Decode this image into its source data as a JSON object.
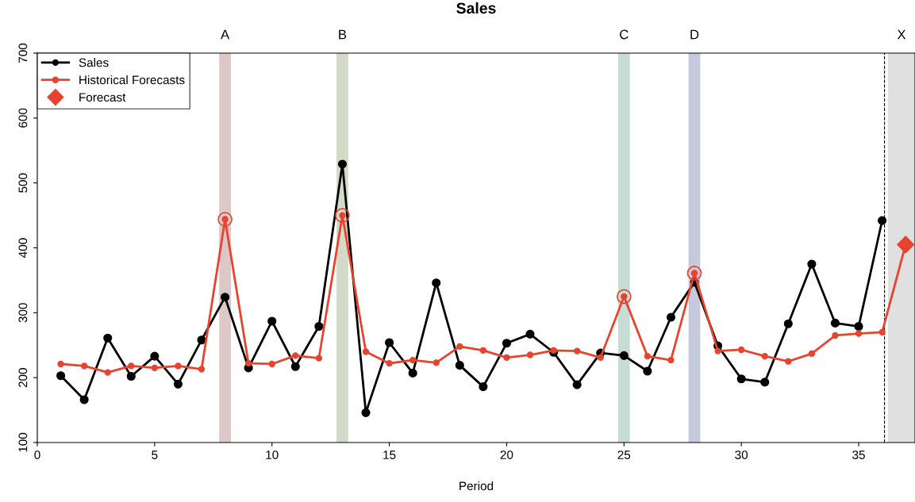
{
  "chart_data": {
    "type": "line",
    "title": "Sales",
    "xlabel": "Period",
    "xlim": [
      0,
      37.4
    ],
    "xticks": [
      0,
      5,
      10,
      15,
      20,
      25,
      30,
      35
    ],
    "ylim": [
      100,
      700
    ],
    "yticks": [
      100,
      200,
      300,
      400,
      500,
      600,
      700
    ],
    "grid": false,
    "legend": "top left",
    "marker": "circle",
    "line_style": "solid",
    "series": [
      {
        "name": "Sales",
        "color": "#000000",
        "x": [
          1,
          2,
          3,
          4,
          5,
          6,
          7,
          8,
          9,
          10,
          11,
          12,
          13,
          14,
          15,
          16,
          17,
          18,
          19,
          20,
          21,
          22,
          23,
          24,
          25,
          26,
          27,
          28,
          29,
          30,
          31,
          32,
          33,
          34,
          35,
          36
        ],
        "values": [
          203,
          166,
          261,
          202,
          233,
          190,
          258,
          324,
          215,
          287,
          217,
          279,
          529,
          146,
          254,
          207,
          346,
          219,
          186,
          253,
          267,
          239,
          189,
          238,
          234,
          210,
          293,
          347,
          249,
          198,
          193,
          283,
          375,
          284,
          279,
          442
        ]
      },
      {
        "name": "Historical Forecasts",
        "color": "#e8432e",
        "x": [
          1,
          2,
          3,
          4,
          5,
          6,
          7,
          8,
          9,
          10,
          11,
          12,
          13,
          14,
          15,
          16,
          17,
          18,
          19,
          20,
          21,
          22,
          23,
          24,
          25,
          26,
          27,
          28,
          29,
          30,
          31,
          32,
          33,
          34,
          35,
          36,
          37
        ],
        "values": [
          221,
          218,
          208,
          218,
          215,
          218,
          213,
          444,
          222,
          221,
          234,
          230,
          450,
          240,
          222,
          227,
          223,
          248,
          242,
          231,
          235,
          242,
          241,
          231,
          325,
          233,
          227,
          361,
          241,
          243,
          233,
          225,
          237,
          265,
          268,
          270,
          405
        ]
      },
      {
        "name": "Forecast",
        "type": "scatter",
        "marker": "diamond",
        "color": "#e8432e",
        "x": [
          37
        ],
        "values": [
          405
        ]
      },
      {
        "type": "scatter",
        "marker": "circle",
        "color": "#e8432e",
        "x": [
          8,
          13,
          25,
          28
        ],
        "values": [
          444,
          450,
          325,
          361
        ]
      }
    ],
    "bands": [
      {
        "axis": "x",
        "from": 7.75,
        "to": 8.25,
        "label": "A",
        "color": "#dcc8c8"
      },
      {
        "axis": "x",
        "from": 12.75,
        "to": 13.25,
        "label": "B",
        "color": "#d3dbc8"
      },
      {
        "axis": "x",
        "from": 24.75,
        "to": 25.25,
        "label": "C",
        "color": "#c6ddd6"
      },
      {
        "axis": "x",
        "from": 27.75,
        "to": 28.25,
        "label": "D",
        "color": "#c6c8dc"
      },
      {
        "axis": "x",
        "from": 36.25,
        "to": 37.4,
        "label": "X",
        "color": "#e0e0e0"
      }
    ],
    "ref_lines": [
      {
        "axis": "x",
        "value": 36.1,
        "line_style": "dashed",
        "color": "#000000"
      }
    ]
  }
}
